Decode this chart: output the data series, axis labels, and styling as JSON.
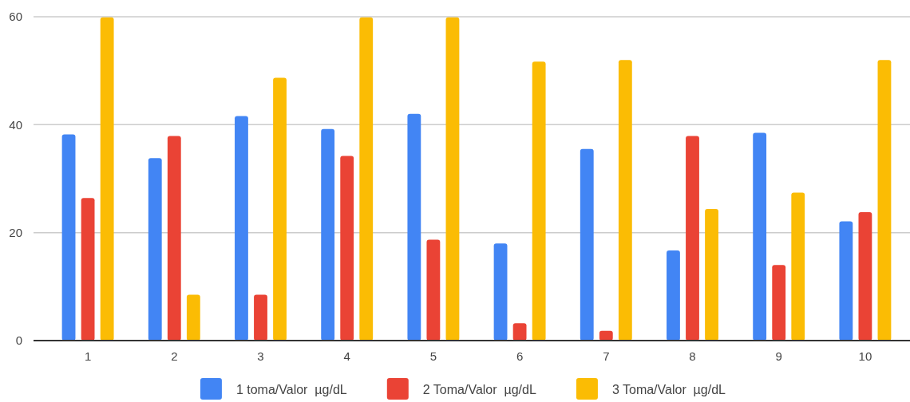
{
  "chart_data": {
    "type": "bar",
    "categories": [
      "1",
      "2",
      "3",
      "4",
      "5",
      "6",
      "7",
      "8",
      "9",
      "10"
    ],
    "series": [
      {
        "name": "1 toma/Valor  µg/dL",
        "color": "#4285f4",
        "values": [
          38.2,
          33.8,
          41.6,
          39.2,
          42,
          18,
          35.5,
          16.7,
          38.5,
          22.1
        ]
      },
      {
        "name": "2 Toma/Valor  µg/dL",
        "color": "#ea4335",
        "values": [
          26.4,
          37.9,
          8.5,
          34.2,
          18.7,
          3.2,
          1.8,
          37.9,
          14,
          23.8
        ]
      },
      {
        "name": "3 Toma/Valor  µg/dL",
        "color": "#fbbc04",
        "values": [
          59.9,
          8.5,
          48.7,
          59.9,
          59.9,
          51.7,
          52,
          24.4,
          27.4,
          52
        ]
      }
    ],
    "ylim": [
      0,
      60
    ],
    "yticks": [
      0,
      20,
      40,
      60
    ],
    "grid": "y",
    "legend": "bottom"
  }
}
